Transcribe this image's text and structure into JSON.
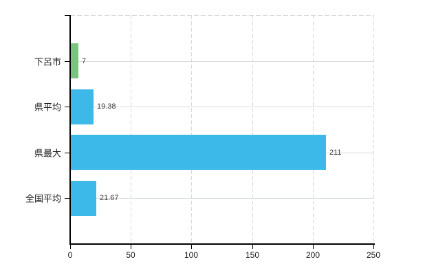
{
  "chart_data": {
    "type": "bar",
    "orientation": "horizontal",
    "title": "",
    "xlabel": "",
    "ylabel": "",
    "categories": [
      "下呂市",
      "県平均",
      "県最大",
      "全国平均"
    ],
    "series": [
      {
        "name": "値",
        "values": [
          7,
          19.38,
          211,
          21.67
        ],
        "value_labels": [
          "7",
          "19.38",
          "211",
          "21.67"
        ],
        "bar_colors": [
          "#79c57f",
          "#3cb9e9",
          "#3cb9e9",
          "#3cb9e9"
        ]
      }
    ],
    "xlim": [
      0,
      250
    ],
    "x_ticks": [
      0,
      50,
      100,
      150,
      200,
      250
    ],
    "x_tick_labels": [
      "0",
      "50",
      "100",
      "150",
      "200",
      "250"
    ],
    "grid": true,
    "legend": false
  },
  "colors": {
    "axis": "#000000",
    "gridline": "#d6dbd6",
    "bar_green": "#79c57f",
    "bar_blue": "#3cb9e9",
    "background": "#ffffff",
    "label_text": "#1a1a1a",
    "value_text": "#3a3a3a"
  }
}
